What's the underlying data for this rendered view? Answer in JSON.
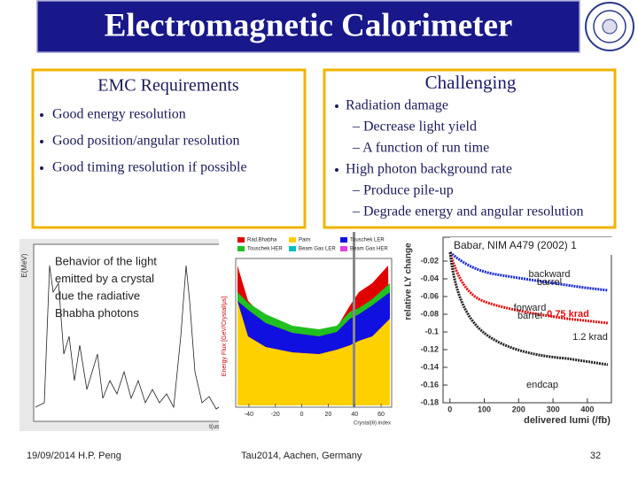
{
  "header": {
    "title": "Electromagnetic Calorimeter"
  },
  "left_box": {
    "title": "EMC Requirements",
    "bullets": [
      "Good energy resolution",
      "Good position/angular resolution",
      "Good timing resolution if possible"
    ]
  },
  "right_box": {
    "title": "Challenging",
    "items": [
      {
        "text": "Radiation damage",
        "level": 1
      },
      {
        "text": "– Decrease light yield",
        "level": 2
      },
      {
        "text": "– A function of run time",
        "level": 2
      },
      {
        "text": "High photon background rate",
        "level": 1
      },
      {
        "text": "– Produce pile-up",
        "level": 2
      },
      {
        "text": "– Degrade energy and angular resolution",
        "level": 2
      }
    ]
  },
  "figures": {
    "waveform": {
      "ylabel": "E(MeV)",
      "xlabel": "t(us)",
      "caption": [
        "Behavior of the light",
        "emitted by a crystal",
        "due the radiative",
        "Bhabha photons"
      ]
    },
    "background": {
      "legend": [
        "Rad.Bhabha",
        "Pairs",
        "Touschek LER",
        "Touschek HER",
        "Beam Gas LER",
        "Beam Gas HER"
      ],
      "legend_colors": [
        "#e00000",
        "#ffd000",
        "#1010e0",
        "#20c020",
        "#00c0c0",
        "#e040e0"
      ],
      "xlim": [
        -50,
        68
      ],
      "xticks": [
        -40,
        -20,
        0,
        20,
        40,
        60
      ],
      "xlabel": "Crystal(θ) index",
      "ylabel": "Energy Flux [GeV/Crystal/μs]"
    },
    "lightyield": {
      "source": "Babar, NIM A479 (2002) 1",
      "ylabel": "relative LY change",
      "xlabel": "delivered lumi (/fb)",
      "xlim": [
        -20,
        470
      ],
      "ylim": [
        -0.18,
        0.007
      ],
      "xticks": [
        0,
        100,
        200,
        300,
        400
      ],
      "yticks": [
        -0.02,
        -0.04,
        -0.06,
        -0.08,
        -0.1,
        -0.12,
        -0.14,
        -0.16,
        -0.18
      ],
      "labels": [
        "backward",
        "barrel",
        "forward",
        "barrel",
        "0.75 krad",
        "1.2 krad",
        "endcap"
      ]
    }
  },
  "footer": {
    "date_author": "19/09/2014 H.P. Peng",
    "conference": "Tau2014,  Aachen,  Germany",
    "page": "32"
  }
}
